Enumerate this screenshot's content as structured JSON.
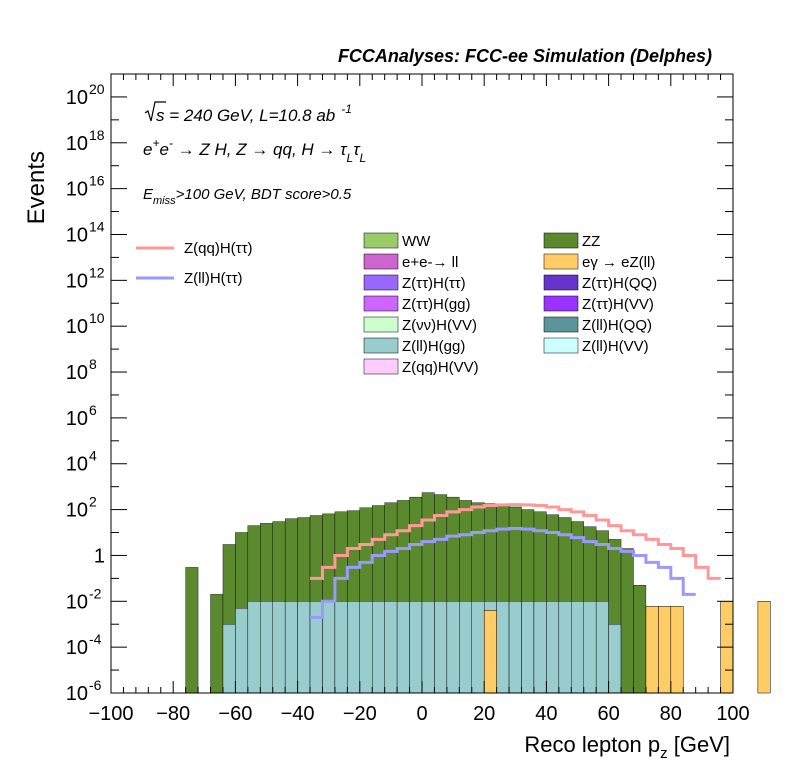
{
  "header": {
    "title": "FCCAnalyses: FCC-ee Simulation (Delphes)"
  },
  "annotations": {
    "energy_a": "s",
    "energy_b": " = 240 GeV, L=10.8 ab",
    "energy_sup": "-1",
    "process_a": "e",
    "process_sup1": "+",
    "process_b": "e",
    "process_sup2": "-",
    "process_c": " → Z H, Z  → qq, H  → τ",
    "process_sub1": "L",
    "process_d": "τ",
    "process_sub2": "L",
    "cut_a": "E",
    "cut_sub": "miss",
    "cut_b": ">100 GeV, BDT score>0.5"
  },
  "chart_data": {
    "type": "bar",
    "stacked": true,
    "log_y": true,
    "title": "FCCAnalyses: FCC-ee Simulation (Delphes)",
    "xlabel": "Reco lepton p",
    "xlabel_sub": "z",
    "xlabel_unit": " [GeV]",
    "ylabel": "Events",
    "xlim": [
      -100,
      100
    ],
    "ylim": [
      1e-06,
      1e+21
    ],
    "x_ticks": [
      "−100",
      "−80",
      "−60",
      "−40",
      "−20",
      "0",
      "20",
      "40",
      "60",
      "80",
      "100"
    ],
    "y_ticks": [
      {
        "base": "10",
        "exp": "-6",
        "value": 1e-06
      },
      {
        "base": "10",
        "exp": "-4",
        "value": 0.0001
      },
      {
        "base": "10",
        "exp": "-2",
        "value": 0.01
      },
      {
        "base": "1",
        "exp": "",
        "value": 1
      },
      {
        "base": "10",
        "exp": "2",
        "value": 100.0
      },
      {
        "base": "10",
        "exp": "4",
        "value": 10000.0
      },
      {
        "base": "10",
        "exp": "6",
        "value": 1000000.0
      },
      {
        "base": "10",
        "exp": "8",
        "value": 100000000.0
      },
      {
        "base": "10",
        "exp": "10",
        "value": 10000000000.0
      },
      {
        "base": "10",
        "exp": "12",
        "value": 1000000000000.0
      },
      {
        "base": "10",
        "exp": "14",
        "value": 100000000000000.0
      },
      {
        "base": "10",
        "exp": "16",
        "value": 1e+16
      },
      {
        "base": "10",
        "exp": "18",
        "value": 1e+18
      },
      {
        "base": "10",
        "exp": "20",
        "value": 1e+20
      }
    ],
    "bins_lo": -100,
    "bins_hi": 100,
    "n_bins": 50,
    "background_total": [
      1e-06,
      1e-06,
      1e-06,
      1e-06,
      1e-06,
      1e-06,
      0.3,
      1e-06,
      0.02,
      3,
      10,
      20,
      25,
      30,
      40,
      45,
      55,
      65,
      80,
      90,
      120,
      150,
      200,
      250,
      350,
      550,
      450,
      350,
      250,
      200,
      180,
      150,
      130,
      100,
      80,
      60,
      45,
      30,
      18,
      12,
      5,
      2,
      0.05,
      1e-06,
      1e-06,
      1e-06,
      1e-06,
      1e-06,
      1e-06,
      1e-06
    ],
    "stack_fractions": [
      {
        "name": "ZZ",
        "color": "#5b8a2e",
        "frac": 0.5
      },
      {
        "name": "Z(ll)H(QQ)",
        "color": "#5a9599",
        "frac": 0.22
      },
      {
        "name": "WW",
        "color": "#99cc66",
        "frac": 0.1
      },
      {
        "name": "Z(νν)H(VV)",
        "color": "#ccffcc",
        "frac": 0.06
      },
      {
        "name": "Z(qq)H(VV)",
        "color": "#ffccff",
        "frac": 0.04
      },
      {
        "name": "Z(ll)H(VV)",
        "color": "#ccffff",
        "frac": 0.02
      },
      {
        "name": "Z(ττ)H(VV)",
        "color": "#9933ff",
        "frac": 0.012
      },
      {
        "name": "Z(ττ)H(QQ)",
        "color": "#6633cc",
        "frac": 0.004
      },
      {
        "name": "Z(ττ)H(ττ)",
        "color": "#9966ff",
        "frac": 0.0015
      },
      {
        "name": "Z(ττ)H(gg)",
        "color": "#cc66ff",
        "frac": 0.0005
      }
    ],
    "floor_teal": [
      null,
      null,
      null,
      null,
      null,
      null,
      null,
      null,
      null,
      0.001,
      0.005,
      0.01,
      0.01,
      0.01,
      0.01,
      0.01,
      0.01,
      0.01,
      0.01,
      0.01,
      0.01,
      0.01,
      0.01,
      0.01,
      0.01,
      0.01,
      0.01,
      0.01,
      0.01,
      0.01,
      0.01,
      0.01,
      0.01,
      0.01,
      0.01,
      0.01,
      0.01,
      0.01,
      0.01,
      0.01,
      0.001,
      null,
      null,
      null,
      null,
      null,
      null,
      null,
      null,
      null
    ],
    "orange_bins": [
      {
        "bin": 30,
        "value": 0.004
      },
      {
        "bin": 43,
        "value": 0.006
      },
      {
        "bin": 44,
        "value": 0.006
      },
      {
        "bin": 45,
        "value": 0.006
      },
      {
        "bin": 49,
        "value": 0.01
      },
      {
        "bin": 52,
        "value": 0.01
      }
    ],
    "series": [
      {
        "name": "Z(qq)H(ττ)",
        "color": "#ff9999",
        "values": [
          null,
          null,
          null,
          null,
          null,
          null,
          null,
          null,
          null,
          null,
          null,
          null,
          null,
          null,
          null,
          null,
          0.1,
          0.3,
          1,
          2,
          3,
          5,
          8,
          12,
          20,
          35,
          55,
          80,
          100,
          130,
          150,
          160,
          165,
          160,
          150,
          130,
          100,
          80,
          55,
          35,
          20,
          12,
          8,
          5,
          3,
          2,
          1,
          0.3,
          0.1,
          null
        ]
      },
      {
        "name": "Z(ll)H(ττ)",
        "color": "#9999ff",
        "values": [
          null,
          null,
          null,
          null,
          null,
          null,
          null,
          null,
          null,
          null,
          null,
          null,
          null,
          null,
          null,
          null,
          0.002,
          0.01,
          0.1,
          0.3,
          0.5,
          1,
          1.5,
          2,
          3,
          4,
          5,
          7,
          8,
          10,
          12,
          14,
          15,
          14,
          12,
          10,
          8,
          6,
          4,
          3,
          2,
          1.5,
          1,
          0.5,
          0.3,
          0.1,
          0.02,
          null,
          null,
          null
        ]
      }
    ],
    "legend_lines": [
      {
        "name": "Z(qq)H(ττ)",
        "color": "#ff9999"
      },
      {
        "name": "Z(ll)H(ττ)",
        "color": "#9999ff"
      }
    ],
    "legend_left": [
      {
        "name": "WW",
        "color": "#99cc66"
      },
      {
        "name": "e+e-→ ll",
        "color": "#cc66cc"
      },
      {
        "name": "Z(ττ)H(ττ)",
        "color": "#9966ff"
      },
      {
        "name": "Z(ττ)H(gg)",
        "color": "#cc66ff"
      },
      {
        "name": "Z(νν)H(VV)",
        "color": "#ccffcc"
      },
      {
        "name": "Z(ll)H(gg)",
        "color": "#99cccc"
      },
      {
        "name": "Z(qq)H(VV)",
        "color": "#ffccff"
      }
    ],
    "legend_right": [
      {
        "name": "ZZ",
        "color": "#5b8a2e"
      },
      {
        "name": "eγ → eZ(ll)",
        "color": "#ffcc66"
      },
      {
        "name": "Z(ττ)H(QQ)",
        "color": "#6633cc"
      },
      {
        "name": "Z(ττ)H(VV)",
        "color": "#9933ff"
      },
      {
        "name": "Z(ll)H(QQ)",
        "color": "#5a9599"
      },
      {
        "name": "Z(ll)H(VV)",
        "color": "#ccffff"
      }
    ],
    "legend_placement": "inside-upper"
  }
}
